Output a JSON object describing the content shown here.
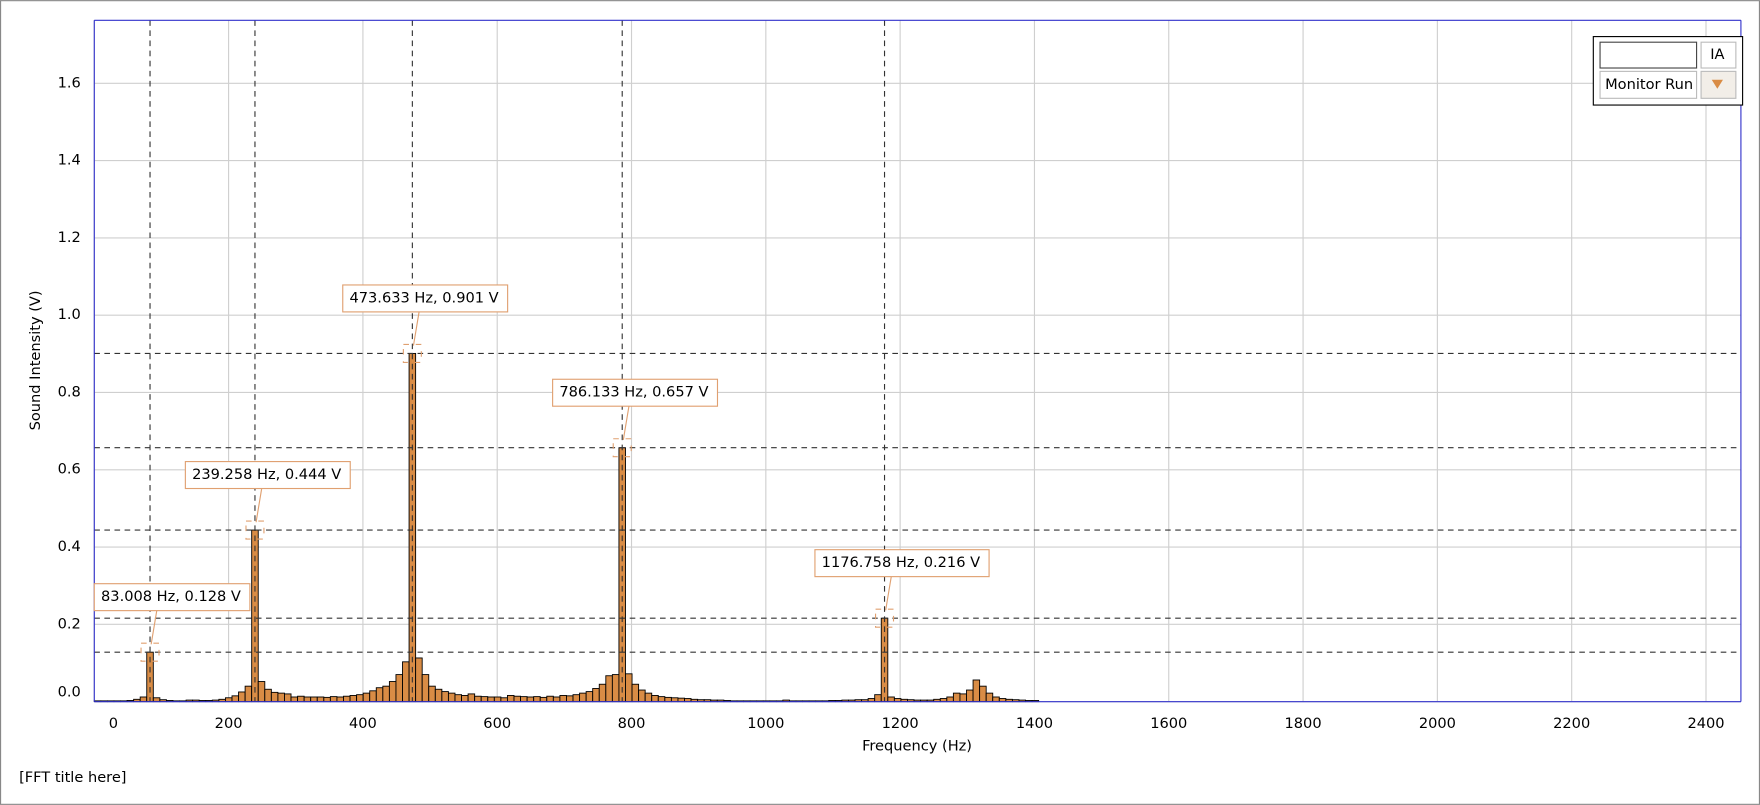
{
  "chart_data": {
    "type": "bar",
    "title": "[FFT title here]",
    "xlabel": "Frequency (Hz)",
    "ylabel": "Sound Intensity (V)",
    "color": "#d98c45",
    "x": [
      4.883,
      14.648,
      24.414,
      34.18,
      43.945,
      53.711,
      63.477,
      73.242,
      83.008,
      92.773,
      102.539,
      112.305,
      122.07,
      131.836,
      141.602,
      151.367,
      161.133,
      170.898,
      180.664,
      190.43,
      200.195,
      209.961,
      219.727,
      229.492,
      239.258,
      249.023,
      258.789,
      268.555,
      278.32,
      288.086,
      297.852,
      307.617,
      317.383,
      327.148,
      336.914,
      346.68,
      356.445,
      366.211,
      375.977,
      385.742,
      395.508,
      405.273,
      415.039,
      424.805,
      434.57,
      444.336,
      454.102,
      463.867,
      473.633,
      483.398,
      493.164,
      502.93,
      512.695,
      522.461,
      532.227,
      541.992,
      551.758,
      561.523,
      571.289,
      581.055,
      590.82,
      600.586,
      610.352,
      620.117,
      629.883,
      639.648,
      649.414,
      659.18,
      668.945,
      678.711,
      688.477,
      698.242,
      708.008,
      717.773,
      727.539,
      737.305,
      747.07,
      756.836,
      766.602,
      776.367,
      786.133,
      795.898,
      805.664,
      815.43,
      825.195,
      834.961,
      844.727,
      854.492,
      864.258,
      874.023,
      883.789,
      893.555,
      903.32,
      913.086,
      922.852,
      932.617,
      942.383,
      952.148,
      961.914,
      971.68,
      981.445,
      991.211,
      1000.977,
      1010.742,
      1020.508,
      1030.273,
      1040.039,
      1049.805,
      1059.57,
      1069.336,
      1079.102,
      1088.867,
      1098.633,
      1108.398,
      1118.164,
      1127.93,
      1137.695,
      1147.461,
      1157.227,
      1166.992,
      1176.758,
      1186.523,
      1196.289,
      1206.055,
      1215.82,
      1225.586,
      1235.352,
      1245.117,
      1254.883,
      1264.648,
      1274.414,
      1284.18,
      1293.945,
      1303.711,
      1313.477,
      1323.242,
      1333.008,
      1342.773,
      1352.539,
      1362.305,
      1372.07,
      1381.836,
      1391.602,
      1401.367
    ],
    "values": [
      0.002,
      0.002,
      0.002,
      0.002,
      0.002,
      0.003,
      0.006,
      0.012,
      0.128,
      0.01,
      0.005,
      0.003,
      0.002,
      0.002,
      0.004,
      0.004,
      0.003,
      0.003,
      0.004,
      0.006,
      0.01,
      0.015,
      0.025,
      0.04,
      0.444,
      0.052,
      0.032,
      0.024,
      0.022,
      0.02,
      0.012,
      0.014,
      0.012,
      0.012,
      0.012,
      0.011,
      0.013,
      0.012,
      0.014,
      0.016,
      0.018,
      0.022,
      0.028,
      0.036,
      0.04,
      0.052,
      0.07,
      0.103,
      0.901,
      0.113,
      0.07,
      0.04,
      0.032,
      0.026,
      0.022,
      0.018,
      0.016,
      0.02,
      0.014,
      0.013,
      0.012,
      0.012,
      0.01,
      0.016,
      0.014,
      0.013,
      0.012,
      0.013,
      0.011,
      0.014,
      0.012,
      0.016,
      0.015,
      0.018,
      0.022,
      0.026,
      0.034,
      0.045,
      0.067,
      0.07,
      0.657,
      0.072,
      0.045,
      0.03,
      0.022,
      0.016,
      0.013,
      0.011,
      0.01,
      0.009,
      0.008,
      0.006,
      0.005,
      0.005,
      0.004,
      0.004,
      0.003,
      0.002,
      0.002,
      0.002,
      0.002,
      0.002,
      0.002,
      0.002,
      0.002,
      0.004,
      0.002,
      0.002,
      0.002,
      0.002,
      0.002,
      0.002,
      0.003,
      0.003,
      0.004,
      0.004,
      0.005,
      0.005,
      0.008,
      0.018,
      0.216,
      0.012,
      0.008,
      0.006,
      0.005,
      0.004,
      0.004,
      0.004,
      0.006,
      0.008,
      0.012,
      0.022,
      0.02,
      0.03,
      0.056,
      0.04,
      0.022,
      0.012,
      0.008,
      0.006,
      0.005,
      0.004,
      0.003,
      0.003
    ],
    "xlim": [
      0,
      2452
    ],
    "ylim": [
      0,
      1.763
    ],
    "xticks": [
      0,
      200,
      400,
      600,
      800,
      1000,
      1200,
      1400,
      1600,
      1800,
      2000,
      2200,
      2400
    ],
    "yticks": [
      {
        "value": 0,
        "label": "0.0"
      },
      0.2,
      0.4,
      0.6,
      0.8,
      {
        "value": 1,
        "label": "1.0"
      },
      1.2,
      1.4,
      1.6
    ],
    "grid": true,
    "annotations": [
      {
        "label": "83.008 Hz, 0.128 V",
        "x": 83.008,
        "y": 0.128
      },
      {
        "label": "239.258 Hz, 0.444 V",
        "x": 239.258,
        "y": 0.444
      },
      {
        "label": "473.633 Hz, 0.901 V",
        "x": 473.633,
        "y": 0.901
      },
      {
        "label": "786.133 Hz, 0.657 V",
        "x": 786.133,
        "y": 0.657
      },
      {
        "label": "1176.758 Hz, 0.216 V",
        "x": 1176.758,
        "y": 0.216
      }
    ]
  },
  "controls": {
    "label": "IA",
    "run": "Monitor Run"
  }
}
